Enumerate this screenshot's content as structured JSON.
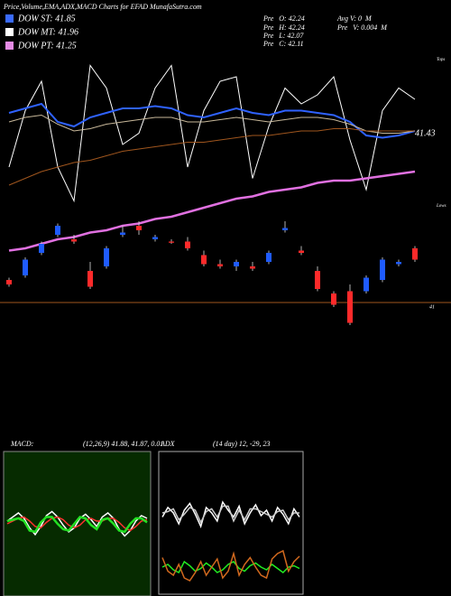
{
  "header": {
    "title": "Price,Volume,EMA,ADX,MACD Charts for EFAD MunafaSutra.com"
  },
  "legend": [
    {
      "label": "DOW ST: 41.85",
      "color": "#3a6bff"
    },
    {
      "label": "DOW MT: 41.96",
      "color": "#ffffff"
    },
    {
      "label": "DOW PT: 41.25",
      "color": "#e58be5"
    }
  ],
  "quote": [
    "Pre   O: 42.24",
    "Pre   H: 42.24",
    "Pre   L: 42.07",
    "Pre   C: 42.11"
  ],
  "volume": [
    "Avg V: 0  M",
    "Pre   V: 0.004  M"
  ],
  "labels": {
    "tops": "Tops",
    "lows": "Lows",
    "ema_last": "41.43",
    "level_label": "41"
  },
  "macd": {
    "label": "MACD:",
    "params": "(12,26,9) 41.88, 41.87, 0.01"
  },
  "adx": {
    "label": "ADX",
    "params": "(14 day) 12, -29, 23"
  },
  "chart_data": [
    {
      "type": "candlestick",
      "ylim": [
        40.9,
        42.1
      ],
      "level": 41,
      "up_color": "#1f5bff",
      "down_color": "#ff2a2a",
      "open": [
        41.1,
        41.12,
        41.22,
        41.3,
        41.28,
        41.14,
        41.16,
        41.3,
        41.34,
        41.28,
        41.27,
        41.27,
        41.21,
        41.17,
        41.16,
        41.16,
        41.18,
        41.32,
        41.23,
        41.14,
        41.04,
        41.05,
        41.05,
        41.1,
        41.17,
        41.24
      ],
      "high": [
        41.11,
        41.2,
        41.27,
        41.35,
        41.3,
        41.18,
        41.25,
        41.34,
        41.36,
        41.3,
        41.28,
        41.29,
        41.23,
        41.19,
        41.19,
        41.18,
        41.23,
        41.36,
        41.25,
        41.16,
        41.05,
        41.08,
        41.12,
        41.2,
        41.19,
        41.25
      ],
      "low": [
        41.07,
        41.11,
        41.21,
        41.29,
        41.26,
        41.06,
        41.15,
        41.29,
        41.3,
        41.27,
        41.26,
        41.23,
        41.16,
        41.15,
        41.14,
        41.14,
        41.17,
        41.31,
        41.21,
        41.05,
        40.98,
        40.9,
        41.04,
        41.09,
        41.16,
        41.18
      ],
      "close": [
        41.08,
        41.19,
        41.26,
        41.34,
        41.27,
        41.07,
        41.24,
        41.31,
        41.32,
        41.29,
        41.265,
        41.24,
        41.17,
        41.16,
        41.18,
        41.15,
        41.22,
        41.33,
        41.22,
        41.06,
        40.99,
        40.91,
        41.11,
        41.19,
        41.18,
        41.19
      ],
      "series": [
        {
          "color": "#ffffff",
          "values": [
            41.6,
            41.85,
            41.98,
            41.6,
            41.45,
            42.05,
            41.95,
            41.7,
            41.75,
            41.95,
            42.05,
            41.6,
            41.85,
            41.98,
            42.0,
            41.55,
            41.78,
            41.95,
            41.88,
            41.92,
            42.0,
            41.72,
            41.5,
            41.85,
            41.95,
            41.9
          ]
        },
        {
          "color": "#2f62ff",
          "values": [
            41.84,
            41.86,
            41.88,
            41.8,
            41.78,
            41.82,
            41.84,
            41.86,
            41.86,
            41.87,
            41.86,
            41.83,
            41.82,
            41.84,
            41.86,
            41.84,
            41.83,
            41.85,
            41.85,
            41.84,
            41.83,
            41.8,
            41.74,
            41.73,
            41.74,
            41.76
          ]
        },
        {
          "color": "#c8b89a",
          "values": [
            41.8,
            41.82,
            41.83,
            41.79,
            41.76,
            41.77,
            41.79,
            41.8,
            41.81,
            41.82,
            41.82,
            41.8,
            41.8,
            41.81,
            41.82,
            41.81,
            41.8,
            41.81,
            41.82,
            41.82,
            41.81,
            41.79,
            41.76,
            41.75,
            41.75,
            41.76
          ]
        },
        {
          "color": "#a0561e",
          "values": [
            41.52,
            41.55,
            41.58,
            41.6,
            41.62,
            41.63,
            41.65,
            41.67,
            41.68,
            41.69,
            41.7,
            41.71,
            41.71,
            41.72,
            41.73,
            41.74,
            41.74,
            41.75,
            41.76,
            41.76,
            41.77,
            41.77,
            41.76,
            41.76,
            41.76,
            41.76
          ]
        },
        {
          "color": "#e070e0",
          "values": [
            41.23,
            41.24,
            41.26,
            41.28,
            41.29,
            41.31,
            41.32,
            41.34,
            41.35,
            41.37,
            41.38,
            41.4,
            41.42,
            41.44,
            41.46,
            41.47,
            41.49,
            41.5,
            41.51,
            41.53,
            41.54,
            41.54,
            41.55,
            41.56,
            41.57,
            41.58
          ]
        }
      ]
    },
    {
      "type": "line",
      "ylim": [
        -0.5,
        0.5
      ],
      "series": [
        {
          "color": "#ffffff",
          "values": [
            0.02,
            0.05,
            0.08,
            0.04,
            -0.03,
            -0.08,
            -0.02,
            0.06,
            0.09,
            0.05,
            -0.01,
            -0.06,
            -0.03,
            0.04,
            0.07,
            0.03,
            -0.02,
            0.05,
            0.08,
            0.04,
            -0.04,
            -0.09,
            -0.05,
            0.02,
            0.06,
            0.04
          ]
        },
        {
          "color": "#ff3030",
          "values": [
            0,
            0.02,
            0.04,
            0.05,
            0.02,
            -0.02,
            -0.03,
            0.01,
            0.04,
            0.05,
            0.03,
            -0.01,
            -0.03,
            -0.01,
            0.03,
            0.04,
            0.02,
            0.02,
            0.04,
            0.04,
            0.01,
            -0.03,
            -0.05,
            -0.02,
            0.02,
            0.03
          ]
        },
        {
          "color": "#22e022",
          "values": [
            0.02,
            0.03,
            0.04,
            0.02,
            -0.05,
            -0.06,
            0.01,
            0.05,
            0.05,
            0,
            -0.04,
            -0.05,
            0,
            0.05,
            0.04,
            -0.01,
            -0.04,
            0.03,
            0.04,
            0,
            -0.05,
            -0.06,
            0,
            0.04,
            0.04,
            0.01
          ]
        }
      ]
    },
    {
      "type": "line",
      "ylim": [
        0,
        100
      ],
      "series": [
        {
          "color": "#ffffff",
          "values": [
            55,
            62,
            58,
            50,
            60,
            65,
            57,
            48,
            62,
            58,
            52,
            66,
            60,
            55,
            63,
            50,
            58,
            64,
            56,
            60,
            52,
            62,
            57,
            50,
            61,
            55
          ]
        },
        {
          "color": "#cccccc",
          "values": [
            58,
            59,
            61,
            53,
            57,
            62,
            60,
            51,
            59,
            61,
            55,
            63,
            63,
            52,
            60,
            53,
            61,
            61,
            59,
            57,
            55,
            59,
            60,
            53,
            58,
            58
          ]
        },
        {
          "color": "#22ee22",
          "values": [
            18,
            20,
            16,
            14,
            22,
            19,
            15,
            17,
            21,
            18,
            14,
            16,
            20,
            22,
            17,
            15,
            19,
            21,
            18,
            16,
            20,
            17,
            14,
            18,
            19,
            17
          ]
        },
        {
          "color": "#d2691e",
          "values": [
            25,
            15,
            12,
            20,
            10,
            8,
            14,
            22,
            12,
            18,
            24,
            10,
            15,
            28,
            12,
            20,
            25,
            18,
            12,
            10,
            24,
            28,
            30,
            15,
            22,
            26
          ]
        }
      ]
    }
  ]
}
